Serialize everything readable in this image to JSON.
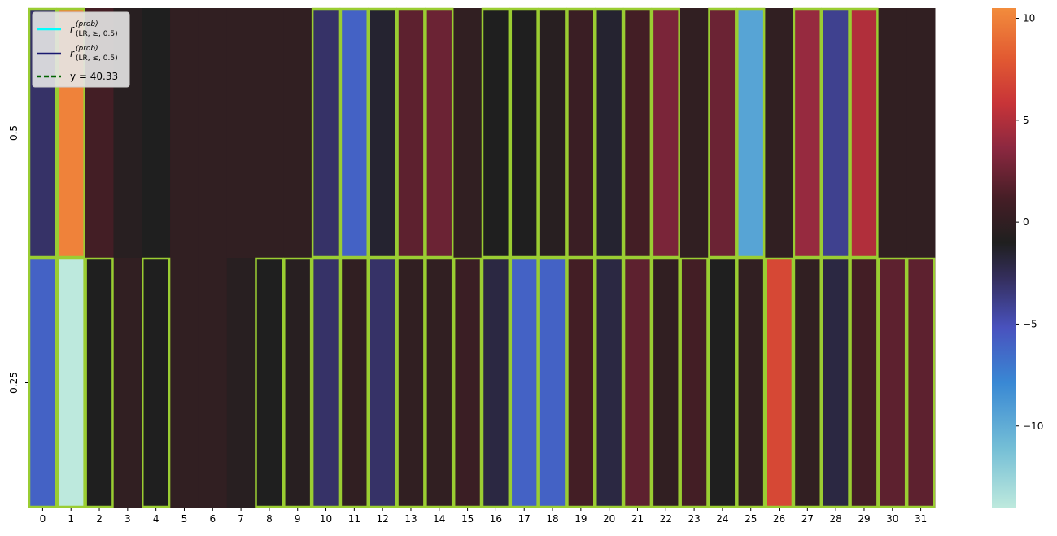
{
  "chart_data": {
    "type": "heatmap",
    "title": "",
    "xlabel": "",
    "ylabel": "",
    "x_categories": [
      "0",
      "1",
      "2",
      "3",
      "4",
      "5",
      "6",
      "7",
      "8",
      "9",
      "10",
      "11",
      "12",
      "13",
      "14",
      "15",
      "16",
      "17",
      "18",
      "19",
      "20",
      "21",
      "22",
      "23",
      "24",
      "25",
      "26",
      "27",
      "28",
      "29",
      "30",
      "31"
    ],
    "y_categories": [
      "0.5",
      "0.25"
    ],
    "values": [
      [
        -3,
        10,
        1,
        -0.5,
        -1,
        0,
        0,
        0,
        0,
        0,
        -3,
        -6,
        -1.5,
        2,
        2.5,
        0,
        -1,
        -1,
        -0.5,
        0.5,
        -1.5,
        1,
        3,
        0,
        2.5,
        -9.5,
        0,
        4,
        -4,
        5,
        0,
        0
      ],
      [
        -6,
        -14,
        -1,
        0,
        -1,
        0,
        0,
        -0.5,
        -1,
        -0.5,
        -3,
        0,
        -3,
        0,
        0,
        0.5,
        -2,
        -6,
        -6,
        1,
        -2,
        2,
        0,
        1,
        -1,
        0,
        7,
        0,
        -2,
        1,
        2,
        2
      ]
    ],
    "highlighted": [
      [
        1,
        1,
        0,
        0,
        0,
        0,
        0,
        0,
        0,
        0,
        1,
        1,
        1,
        1,
        1,
        0,
        1,
        1,
        1,
        1,
        1,
        1,
        1,
        0,
        1,
        1,
        0,
        1,
        1,
        1,
        0,
        0
      ],
      [
        1,
        1,
        1,
        0,
        1,
        0,
        0,
        0,
        1,
        1,
        1,
        1,
        1,
        1,
        1,
        1,
        1,
        1,
        1,
        1,
        1,
        1,
        1,
        1,
        1,
        1,
        1,
        1,
        1,
        1,
        1,
        1
      ]
    ],
    "highlight_color": "#9acd32",
    "colormap": "icefire",
    "vmin": -14,
    "vmax": 10.5,
    "colorbar_ticks": [
      "10",
      "5",
      "0",
      "−5",
      "−10"
    ],
    "colorbar_tick_values": [
      10,
      5,
      0,
      -5,
      -10
    ],
    "legend": {
      "placement": "top-left",
      "entries": [
        {
          "label_main": "r",
          "label_sup": "(prob)",
          "label_sub": "(LR, ≥, 0.5)",
          "color": "#00ffff",
          "style": "solid"
        },
        {
          "label_main": "r",
          "label_sup": "(prob)",
          "label_sub": "(LR, ≤, 0.5)",
          "color": "#191970",
          "style": "solid"
        },
        {
          "label_main": "y = 40.33",
          "label_sup": "",
          "label_sub": "",
          "color": "#006400",
          "style": "dashed"
        }
      ]
    }
  }
}
